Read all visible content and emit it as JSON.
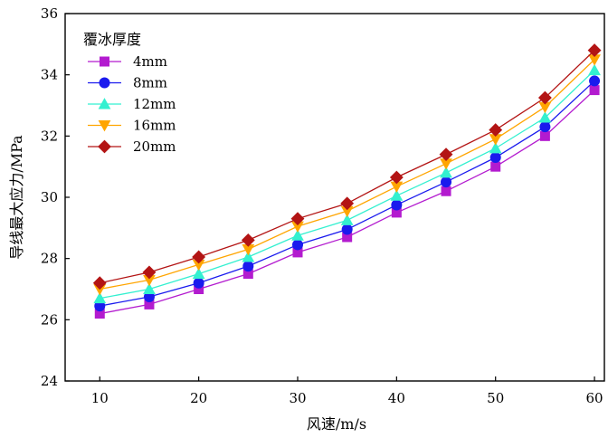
{
  "chart_data": {
    "type": "line",
    "xlabel": "风速/m/s",
    "ylabel": "导线最大应力/MPa",
    "xlim": [
      6.5,
      61
    ],
    "ylim": [
      24,
      36
    ],
    "xticks": [
      10,
      20,
      30,
      40,
      50,
      60
    ],
    "yticks": [
      24,
      26,
      28,
      30,
      32,
      34,
      36
    ],
    "grid": false,
    "legend": {
      "title": "覆冰厚度",
      "position": "top-left"
    },
    "x": [
      10,
      15,
      20,
      25,
      30,
      35,
      40,
      45,
      50,
      55,
      60
    ],
    "series": [
      {
        "name": "4mm",
        "color": "#b31bcf",
        "marker": "square",
        "values": [
          26.2,
          26.5,
          27.0,
          27.5,
          28.2,
          28.7,
          29.5,
          30.2,
          31.0,
          32.0,
          33.5
        ]
      },
      {
        "name": "8mm",
        "color": "#1a1aee",
        "marker": "circle",
        "values": [
          26.45,
          26.75,
          27.2,
          27.75,
          28.45,
          28.95,
          29.75,
          30.5,
          31.3,
          32.3,
          33.8
        ]
      },
      {
        "name": "12mm",
        "color": "#33f0d0",
        "marker": "triangle-up",
        "values": [
          26.7,
          27.0,
          27.5,
          28.05,
          28.75,
          29.25,
          30.05,
          30.8,
          31.6,
          32.6,
          34.15
        ]
      },
      {
        "name": "16mm",
        "color": "#ffa500",
        "marker": "triangle-down",
        "values": [
          27.0,
          27.3,
          27.8,
          28.3,
          29.05,
          29.55,
          30.35,
          31.1,
          31.9,
          32.95,
          34.5
        ]
      },
      {
        "name": "20mm",
        "color": "#b31414",
        "marker": "diamond",
        "values": [
          27.2,
          27.55,
          28.05,
          28.6,
          29.3,
          29.8,
          30.65,
          31.4,
          32.2,
          33.25,
          34.8
        ]
      }
    ]
  }
}
